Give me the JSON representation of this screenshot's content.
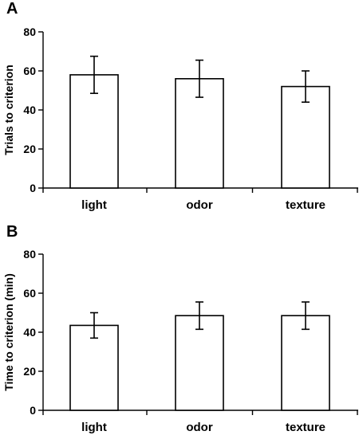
{
  "chart_data": [
    {
      "type": "bar",
      "panel_label": "A",
      "categories": [
        "light",
        "odor",
        "texture"
      ],
      "values": [
        58,
        56,
        52
      ],
      "errors": [
        9.5,
        9.5,
        8
      ],
      "xlabel": "",
      "ylabel": "Trials to criterion",
      "ylim": [
        0,
        80
      ],
      "yticks": [
        0,
        20,
        40,
        60,
        80
      ],
      "grid": false,
      "bar_fill": "#ffffff",
      "bar_stroke": "#000000"
    },
    {
      "type": "bar",
      "panel_label": "B",
      "categories": [
        "light",
        "odor",
        "texture"
      ],
      "values": [
        43.5,
        48.5,
        48.5
      ],
      "errors": [
        6.5,
        7,
        7
      ],
      "xlabel": "",
      "ylabel": "Time to criterion (min)",
      "ylim": [
        0,
        80
      ],
      "yticks": [
        0,
        20,
        40,
        60,
        80
      ],
      "grid": false,
      "bar_fill": "#ffffff",
      "bar_stroke": "#000000"
    }
  ]
}
